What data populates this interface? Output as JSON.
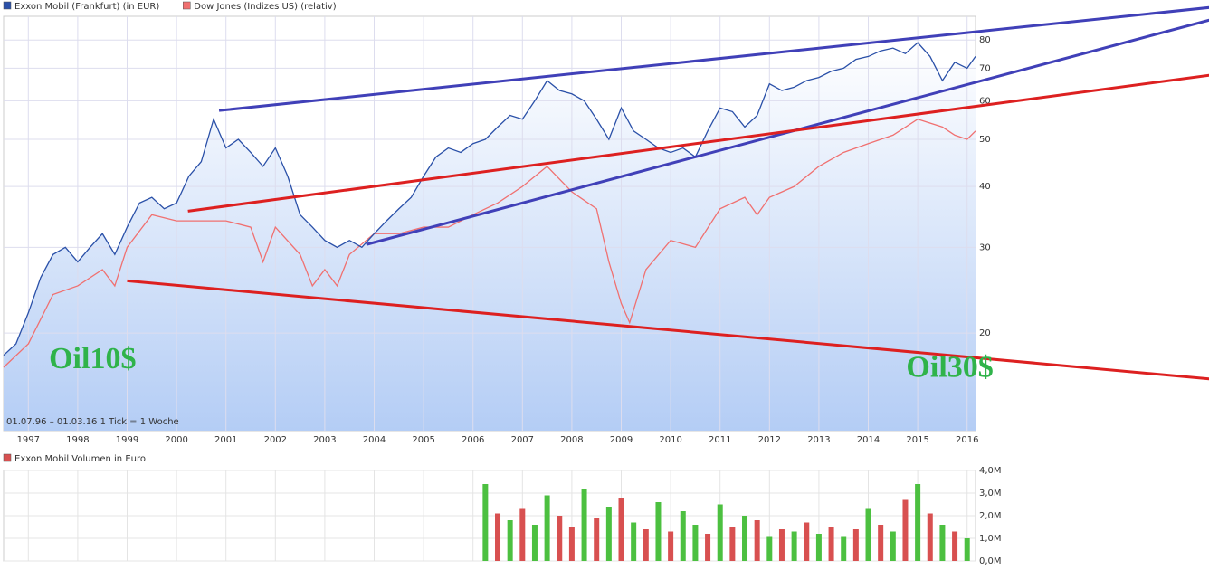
{
  "chart_data": [
    {
      "type": "line",
      "log_scale": true,
      "grid": true,
      "footer": "01.07.96 – 01.03.16   1 Tick = 1 Woche",
      "xlim": [
        1996.5,
        2016.17
      ],
      "xticks": [
        1997,
        1998,
        1999,
        2000,
        2001,
        2002,
        2003,
        2004,
        2005,
        2006,
        2007,
        2008,
        2009,
        2010,
        2011,
        2012,
        2013,
        2014,
        2015,
        2016
      ],
      "ylim": [
        12.6,
        89.5
      ],
      "yticks": [
        20,
        30,
        40,
        50,
        60,
        70,
        80
      ],
      "series": [
        {
          "name": "Exxon Mobil (Frankfurt) (in EUR)",
          "color": "#2a50a8",
          "x": [
            1996.5,
            1996.75,
            1997,
            1997.25,
            1997.5,
            1997.75,
            1998,
            1998.25,
            1998.5,
            1998.75,
            1999,
            1999.25,
            1999.5,
            1999.75,
            2000,
            2000.25,
            2000.5,
            2000.75,
            2001,
            2001.25,
            2001.5,
            2001.75,
            2002,
            2002.25,
            2002.5,
            2002.75,
            2003,
            2003.25,
            2003.5,
            2003.75,
            2004,
            2004.25,
            2004.5,
            2004.75,
            2005,
            2005.25,
            2005.5,
            2005.75,
            2006,
            2006.25,
            2006.5,
            2006.75,
            2007,
            2007.25,
            2007.5,
            2007.75,
            2008,
            2008.25,
            2008.5,
            2008.75,
            2009,
            2009.25,
            2009.5,
            2009.75,
            2010,
            2010.25,
            2010.5,
            2010.75,
            2011,
            2011.25,
            2011.5,
            2011.75,
            2012,
            2012.25,
            2012.5,
            2012.75,
            2013,
            2013.25,
            2013.5,
            2013.75,
            2014,
            2014.25,
            2014.5,
            2014.75,
            2015,
            2015.25,
            2015.5,
            2015.75,
            2016,
            2016.17
          ],
          "values": [
            18,
            19,
            22,
            26,
            29,
            30,
            28,
            30,
            32,
            29,
            33,
            37,
            38,
            36,
            37,
            42,
            45,
            55,
            48,
            50,
            47,
            44,
            48,
            42,
            35,
            33,
            31,
            30,
            31,
            30,
            32,
            34,
            36,
            38,
            42,
            46,
            48,
            47,
            49,
            50,
            53,
            56,
            55,
            60,
            66,
            63,
            62,
            60,
            55,
            50,
            58,
            52,
            50,
            48,
            47,
            48,
            46,
            52,
            58,
            57,
            53,
            56,
            65,
            63,
            64,
            66,
            67,
            69,
            70,
            73,
            74,
            76,
            77,
            75,
            79,
            74,
            66,
            72,
            70,
            74
          ]
        },
        {
          "name": "Dow Jones (Indizes US) (relativ)",
          "color": "#f07070",
          "x": [
            1996.5,
            1997,
            1997.5,
            1998,
            1998.5,
            1998.75,
            1999,
            1999.5,
            2000,
            2000.5,
            2001,
            2001.5,
            2001.75,
            2002,
            2002.5,
            2002.75,
            2003,
            2003.25,
            2003.5,
            2004,
            2004.5,
            2005,
            2005.5,
            2006,
            2006.5,
            2007,
            2007.5,
            2008,
            2008.5,
            2008.75,
            2009,
            2009.17,
            2009.5,
            2010,
            2010.5,
            2011,
            2011.5,
            2011.75,
            2012,
            2012.5,
            2013,
            2013.5,
            2014,
            2014.5,
            2015,
            2015.5,
            2015.75,
            2016,
            2016.17
          ],
          "values": [
            17,
            19,
            24,
            25,
            27,
            25,
            30,
            35,
            34,
            34,
            34,
            33,
            28,
            33,
            29,
            25,
            27,
            25,
            29,
            32,
            32,
            33,
            33,
            35,
            37,
            40,
            44,
            39,
            36,
            28,
            23,
            21,
            27,
            31,
            30,
            36,
            38,
            35,
            38,
            40,
            44,
            47,
            49,
            51,
            55,
            53,
            51,
            50,
            52
          ]
        }
      ],
      "trendlines": [
        {
          "color": "#4040b8",
          "x": [
            2000.86,
            2020.9
          ],
          "y": [
            57.3,
            93.3
          ]
        },
        {
          "color": "#4040b8",
          "x": [
            2003.84,
            2020.9
          ],
          "y": [
            30.4,
            87.9
          ]
        },
        {
          "color": "#dd2020",
          "x": [
            2000.23,
            2020.9
          ],
          "y": [
            35.6,
            67.7
          ]
        },
        {
          "color": "#dd2020",
          "x": [
            1999.0,
            2020.9
          ],
          "y": [
            25.6,
            16.1
          ]
        }
      ],
      "annotations": [
        {
          "text": "Oil10$",
          "x": 1998.3,
          "y": 17.5
        },
        {
          "text": "Oil30$",
          "x": 2015.65,
          "y": 16.8
        }
      ]
    },
    {
      "type": "bar",
      "title": "Exxon Mobil Volumen in Euro",
      "color": "#d85050",
      "xlim": [
        1996.5,
        2016.17
      ],
      "ylim": [
        0,
        4000000
      ],
      "yticks": [
        {
          "value": 0,
          "label": "0,0M"
        },
        {
          "value": 1000000,
          "label": "1,0M"
        },
        {
          "value": 2000000,
          "label": "2,0M"
        },
        {
          "value": 3000000,
          "label": "3,0M"
        },
        {
          "value": 4000000,
          "label": "4,0M"
        }
      ],
      "x": [
        2006.25,
        2006.5,
        2006.75,
        2007,
        2007.25,
        2007.5,
        2007.75,
        2008,
        2008.25,
        2008.5,
        2008.75,
        2009,
        2009.25,
        2009.5,
        2009.75,
        2010,
        2010.25,
        2010.5,
        2010.75,
        2011,
        2011.25,
        2011.5,
        2011.75,
        2012,
        2012.25,
        2012.5,
        2012.75,
        2013,
        2013.25,
        2013.5,
        2013.75,
        2014,
        2014.25,
        2014.5,
        2014.75,
        2015,
        2015.25,
        2015.5,
        2015.75,
        2016
      ],
      "values": [
        3400000,
        2100000,
        1800000,
        2300000,
        1600000,
        2900000,
        2000000,
        1500000,
        3200000,
        1900000,
        2400000,
        2800000,
        1700000,
        1400000,
        2600000,
        1300000,
        2200000,
        1600000,
        1200000,
        2500000,
        1500000,
        2000000,
        1800000,
        1100000,
        1400000,
        1300000,
        1700000,
        1200000,
        1500000,
        1100000,
        1400000,
        2300000,
        1600000,
        1300000,
        2700000,
        3400000,
        2100000,
        1600000,
        1300000,
        1000000
      ],
      "colors": [
        "#4cc040",
        "#d85050",
        "#4cc040",
        "#d85050",
        "#4cc040",
        "#4cc040",
        "#d85050",
        "#d85050",
        "#4cc040",
        "#d85050",
        "#4cc040",
        "#d85050",
        "#4cc040",
        "#d85050",
        "#4cc040",
        "#d85050",
        "#4cc040",
        "#4cc040",
        "#d85050",
        "#4cc040",
        "#d85050",
        "#4cc040",
        "#d85050",
        "#4cc040",
        "#d85050",
        "#4cc040",
        "#d85050",
        "#4cc040",
        "#d85050",
        "#4cc040",
        "#d85050",
        "#4cc040",
        "#d85050",
        "#4cc040",
        "#d85050",
        "#4cc040",
        "#d85050",
        "#4cc040",
        "#d85050",
        "#4cc040"
      ]
    }
  ]
}
